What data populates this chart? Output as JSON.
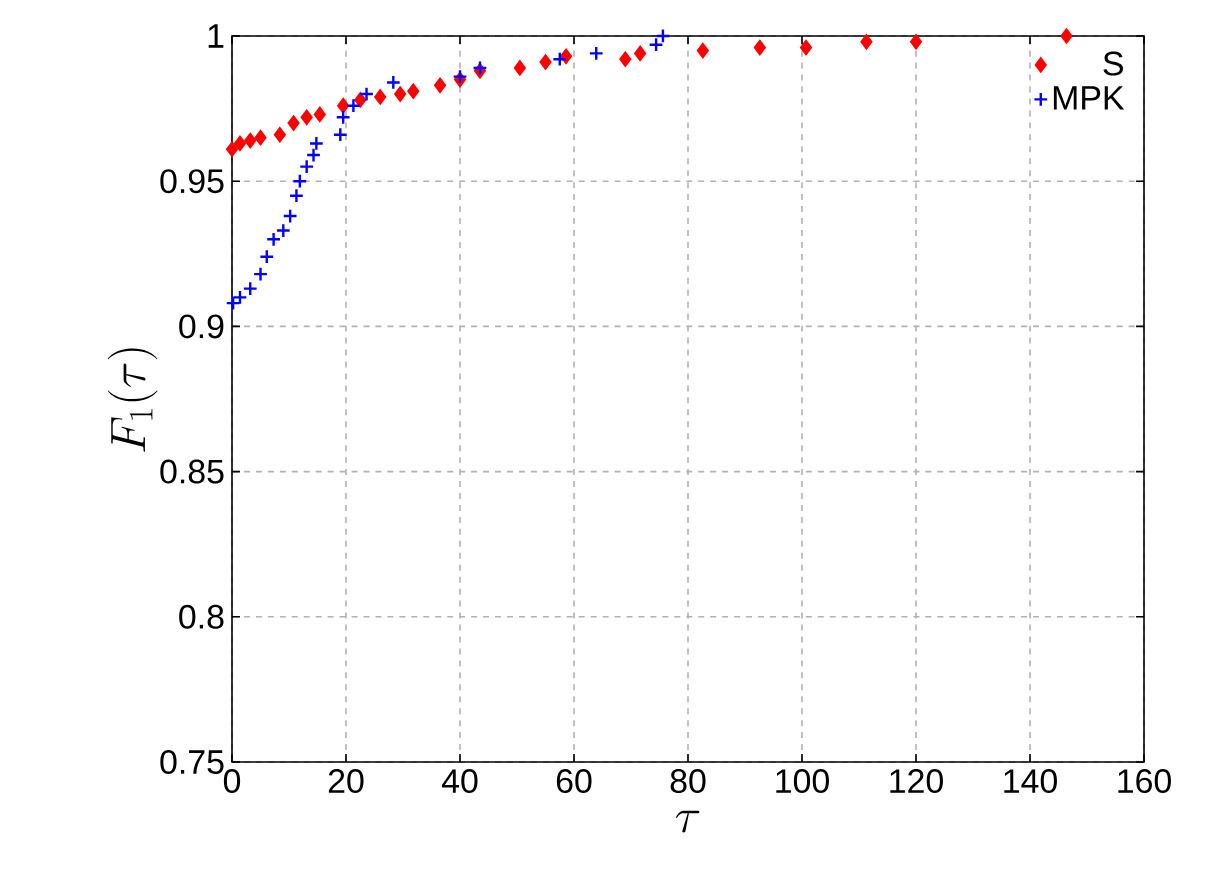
{
  "chart_data": {
    "type": "scatter",
    "xlabel": "\\tau",
    "ylabel": "F_1(\\tau)",
    "xlim": [
      0,
      160
    ],
    "ylim": [
      0.75,
      1
    ],
    "xticks": [
      0,
      20,
      40,
      60,
      80,
      100,
      120,
      140,
      160
    ],
    "yticks": [
      0.75,
      0.8,
      0.85,
      0.9,
      0.95,
      1
    ],
    "grid": true,
    "legend": "top right",
    "series": [
      {
        "name": "S",
        "color": "#ff0000",
        "marker": "diamond",
        "x": [
          0,
          1.4,
          3.2,
          5,
          8.4,
          10.8,
          13.1,
          15.4,
          19.5,
          22.5,
          26,
          29.5,
          31.8,
          36.5,
          40,
          43.5,
          50.5,
          55,
          58.6,
          69,
          71.6,
          82.6,
          92.6,
          100.7,
          111.3,
          120,
          146.4
        ],
        "values": [
          0.961,
          0.963,
          0.964,
          0.965,
          0.966,
          0.97,
          0.972,
          0.973,
          0.976,
          0.978,
          0.979,
          0.98,
          0.981,
          0.983,
          0.985,
          0.988,
          0.989,
          0.991,
          0.993,
          0.992,
          0.994,
          0.995,
          0.996,
          0.996,
          0.998,
          0.998,
          1.0
        ]
      },
      {
        "name": "MPK",
        "color": "#0000ff",
        "marker": "cross",
        "x": [
          0.2,
          1.4,
          3.2,
          5,
          6.1,
          7.3,
          9,
          10.2,
          11.3,
          11.9,
          13.1,
          14.3,
          14.8,
          19,
          19.5,
          21.3,
          23.6,
          28.3,
          40,
          43.5,
          57.5,
          63.9,
          74.4,
          75.6
        ],
        "values": [
          0.908,
          0.91,
          0.913,
          0.918,
          0.924,
          0.93,
          0.933,
          0.938,
          0.945,
          0.95,
          0.955,
          0.959,
          0.963,
          0.966,
          0.972,
          0.976,
          0.98,
          0.984,
          0.986,
          0.989,
          0.992,
          0.994,
          0.997,
          1.0
        ]
      }
    ]
  }
}
